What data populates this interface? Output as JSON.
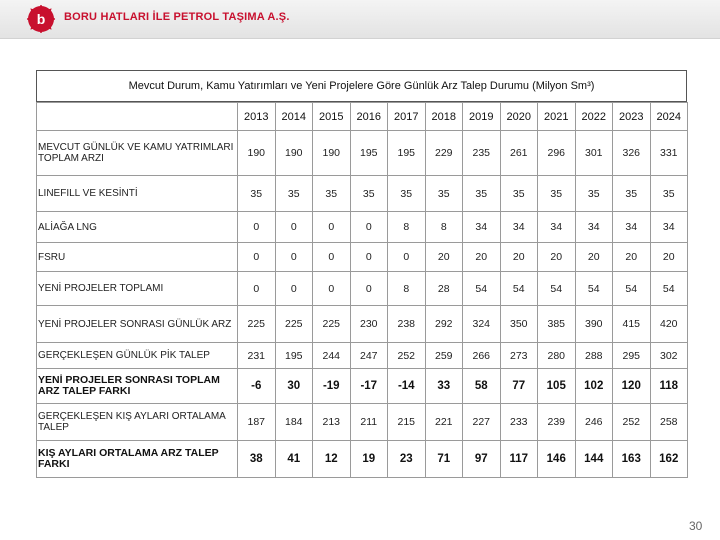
{
  "header": {
    "company_name": "BORU HATLARI İLE PETROL TAŞIMA A.Ş."
  },
  "colors": {
    "brand_red": "#c8102e"
  },
  "table": {
    "title": "Mevcut Durum, Kamu Yatırımları ve Yeni Projelere Göre Günlük Arz Talep Durumu (Milyon Sm³)",
    "years": [
      "2013",
      "2014",
      "2015",
      "2016",
      "2017",
      "2018",
      "2019",
      "2020",
      "2021",
      "2022",
      "2023",
      "2024"
    ],
    "rows": [
      {
        "label": "MEVCUT GÜNLÜK VE KAMU YATRIMLARI TOPLAM ARZI",
        "values": [
          "190",
          "190",
          "190",
          "195",
          "195",
          "229",
          "235",
          "261",
          "296",
          "301",
          "326",
          "331"
        ]
      },
      {
        "label": "LINEFILL VE KESİNTİ",
        "values": [
          "35",
          "35",
          "35",
          "35",
          "35",
          "35",
          "35",
          "35",
          "35",
          "35",
          "35",
          "35"
        ]
      },
      {
        "label": "ALİAĞA LNG",
        "values": [
          "0",
          "0",
          "0",
          "0",
          "8",
          "8",
          "34",
          "34",
          "34",
          "34",
          "34",
          "34"
        ]
      },
      {
        "label": "FSRU",
        "values": [
          "0",
          "0",
          "0",
          "0",
          "0",
          "20",
          "20",
          "20",
          "20",
          "20",
          "20",
          "20"
        ]
      },
      {
        "label": "YENİ PROJELER TOPLAMI",
        "values": [
          "0",
          "0",
          "0",
          "0",
          "8",
          "28",
          "54",
          "54",
          "54",
          "54",
          "54",
          "54"
        ]
      },
      {
        "label": "YENİ PROJELER SONRASI GÜNLÜK ARZ",
        "values": [
          "225",
          "225",
          "225",
          "230",
          "238",
          "292",
          "324",
          "350",
          "385",
          "390",
          "415",
          "420"
        ]
      },
      {
        "label": "GERÇEKLEŞEN GÜNLÜK PİK TALEP",
        "values": [
          "231",
          "195",
          "244",
          "247",
          "252",
          "259",
          "266",
          "273",
          "280",
          "288",
          "295",
          "302"
        ]
      },
      {
        "label": "YENİ PROJELER SONRASI TOPLAM ARZ TALEP FARKI",
        "values": [
          "-6",
          "30",
          "-19",
          "-17",
          "-14",
          "33",
          "58",
          "77",
          "105",
          "102",
          "120",
          "118"
        ]
      },
      {
        "label": "GERÇEKLEŞEN KIŞ AYLARI ORTALAMA TALEP",
        "values": [
          "187",
          "184",
          "213",
          "211",
          "215",
          "221",
          "227",
          "233",
          "239",
          "246",
          "252",
          "258"
        ]
      },
      {
        "label": "KIŞ AYLARI ORTALAMA ARZ TALEP FARKI",
        "values": [
          "38",
          "41",
          "12",
          "19",
          "23",
          "71",
          "97",
          "117",
          "146",
          "144",
          "163",
          "162"
        ]
      }
    ]
  },
  "page_number": "30"
}
